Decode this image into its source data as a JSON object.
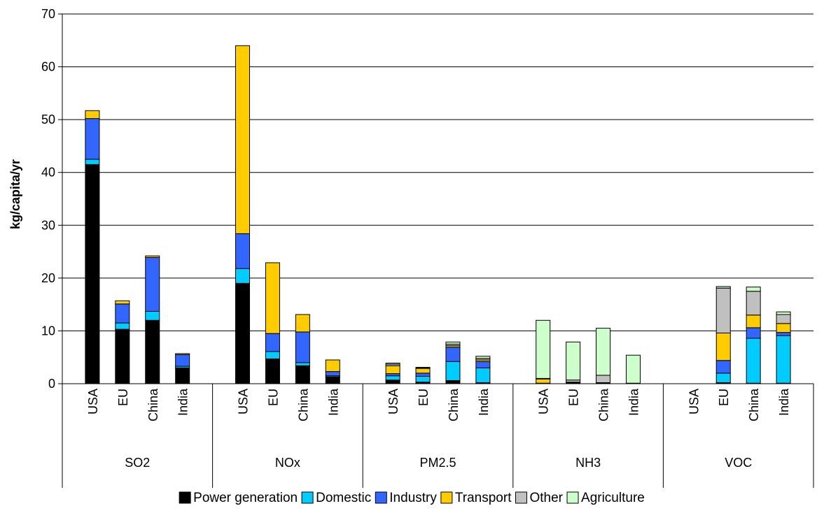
{
  "chart_data": {
    "type": "bar",
    "stacked": true,
    "title": "",
    "xlabel": "",
    "ylabel": "kg/capita/yr",
    "ylim": [
      0,
      70
    ],
    "yticks": [
      "0",
      "10",
      "20",
      "30",
      "40",
      "50",
      "60",
      "70"
    ],
    "grid": true,
    "legend_position": "bottom",
    "groups": [
      {
        "name": "SO2",
        "categories": [
          "USA",
          "EU",
          "China",
          "India"
        ]
      },
      {
        "name": "NOx",
        "categories": [
          "USA",
          "EU",
          "China",
          "India"
        ]
      },
      {
        "name": "PM2.5",
        "categories": [
          "USA",
          "EU",
          "China",
          "India"
        ]
      },
      {
        "name": "NH3",
        "categories": [
          "USA",
          "EU",
          "China",
          "India"
        ]
      },
      {
        "name": "VOC",
        "categories": [
          "USA",
          "EU",
          "China",
          "India"
        ]
      }
    ],
    "series": [
      {
        "name": "Power generation",
        "color": "#000000",
        "values": [
          41.5,
          10.3,
          12.0,
          3.0,
          19.0,
          4.7,
          3.4,
          1.3,
          0.7,
          0.3,
          0.6,
          0.2,
          0.1,
          0.2,
          0.2,
          0.1,
          0.0,
          0.2,
          0.1,
          0.1
        ]
      },
      {
        "name": "Domestic",
        "color": "#00ccff",
        "values": [
          1.0,
          1.2,
          1.7,
          0.3,
          2.8,
          1.4,
          0.6,
          0.2,
          0.8,
          1.1,
          3.6,
          2.8,
          0.0,
          0.0,
          0.0,
          0.0,
          0.0,
          1.8,
          8.5,
          9.0
        ]
      },
      {
        "name": "Industry",
        "color": "#3366ff",
        "values": [
          7.7,
          3.6,
          10.2,
          2.2,
          6.6,
          3.4,
          5.8,
          0.8,
          0.4,
          0.6,
          2.7,
          1.2,
          0.0,
          0.0,
          0.0,
          0.0,
          0.0,
          2.4,
          2.0,
          0.6
        ]
      },
      {
        "name": "Transport",
        "color": "#ffcc00",
        "values": [
          1.5,
          0.6,
          0.3,
          0.2,
          35.6,
          13.4,
          3.3,
          2.2,
          1.5,
          0.9,
          0.3,
          0.3,
          0.8,
          0.1,
          0.0,
          0.0,
          0.0,
          5.2,
          2.4,
          1.7
        ]
      },
      {
        "name": "Other",
        "color": "#c0c0c0",
        "values": [
          0.0,
          0.0,
          0.0,
          0.0,
          0.0,
          0.0,
          0.0,
          0.0,
          0.3,
          0.1,
          0.3,
          0.3,
          0.1,
          0.4,
          1.4,
          0.0,
          0.0,
          8.5,
          4.5,
          1.7
        ]
      },
      {
        "name": "Agriculture",
        "color": "#ccffcc",
        "values": [
          0.0,
          0.0,
          0.0,
          0.0,
          0.0,
          0.0,
          0.0,
          0.0,
          0.2,
          0.1,
          0.4,
          0.4,
          11.0,
          7.2,
          8.9,
          5.3,
          0.0,
          0.3,
          0.8,
          0.5
        ]
      }
    ]
  }
}
